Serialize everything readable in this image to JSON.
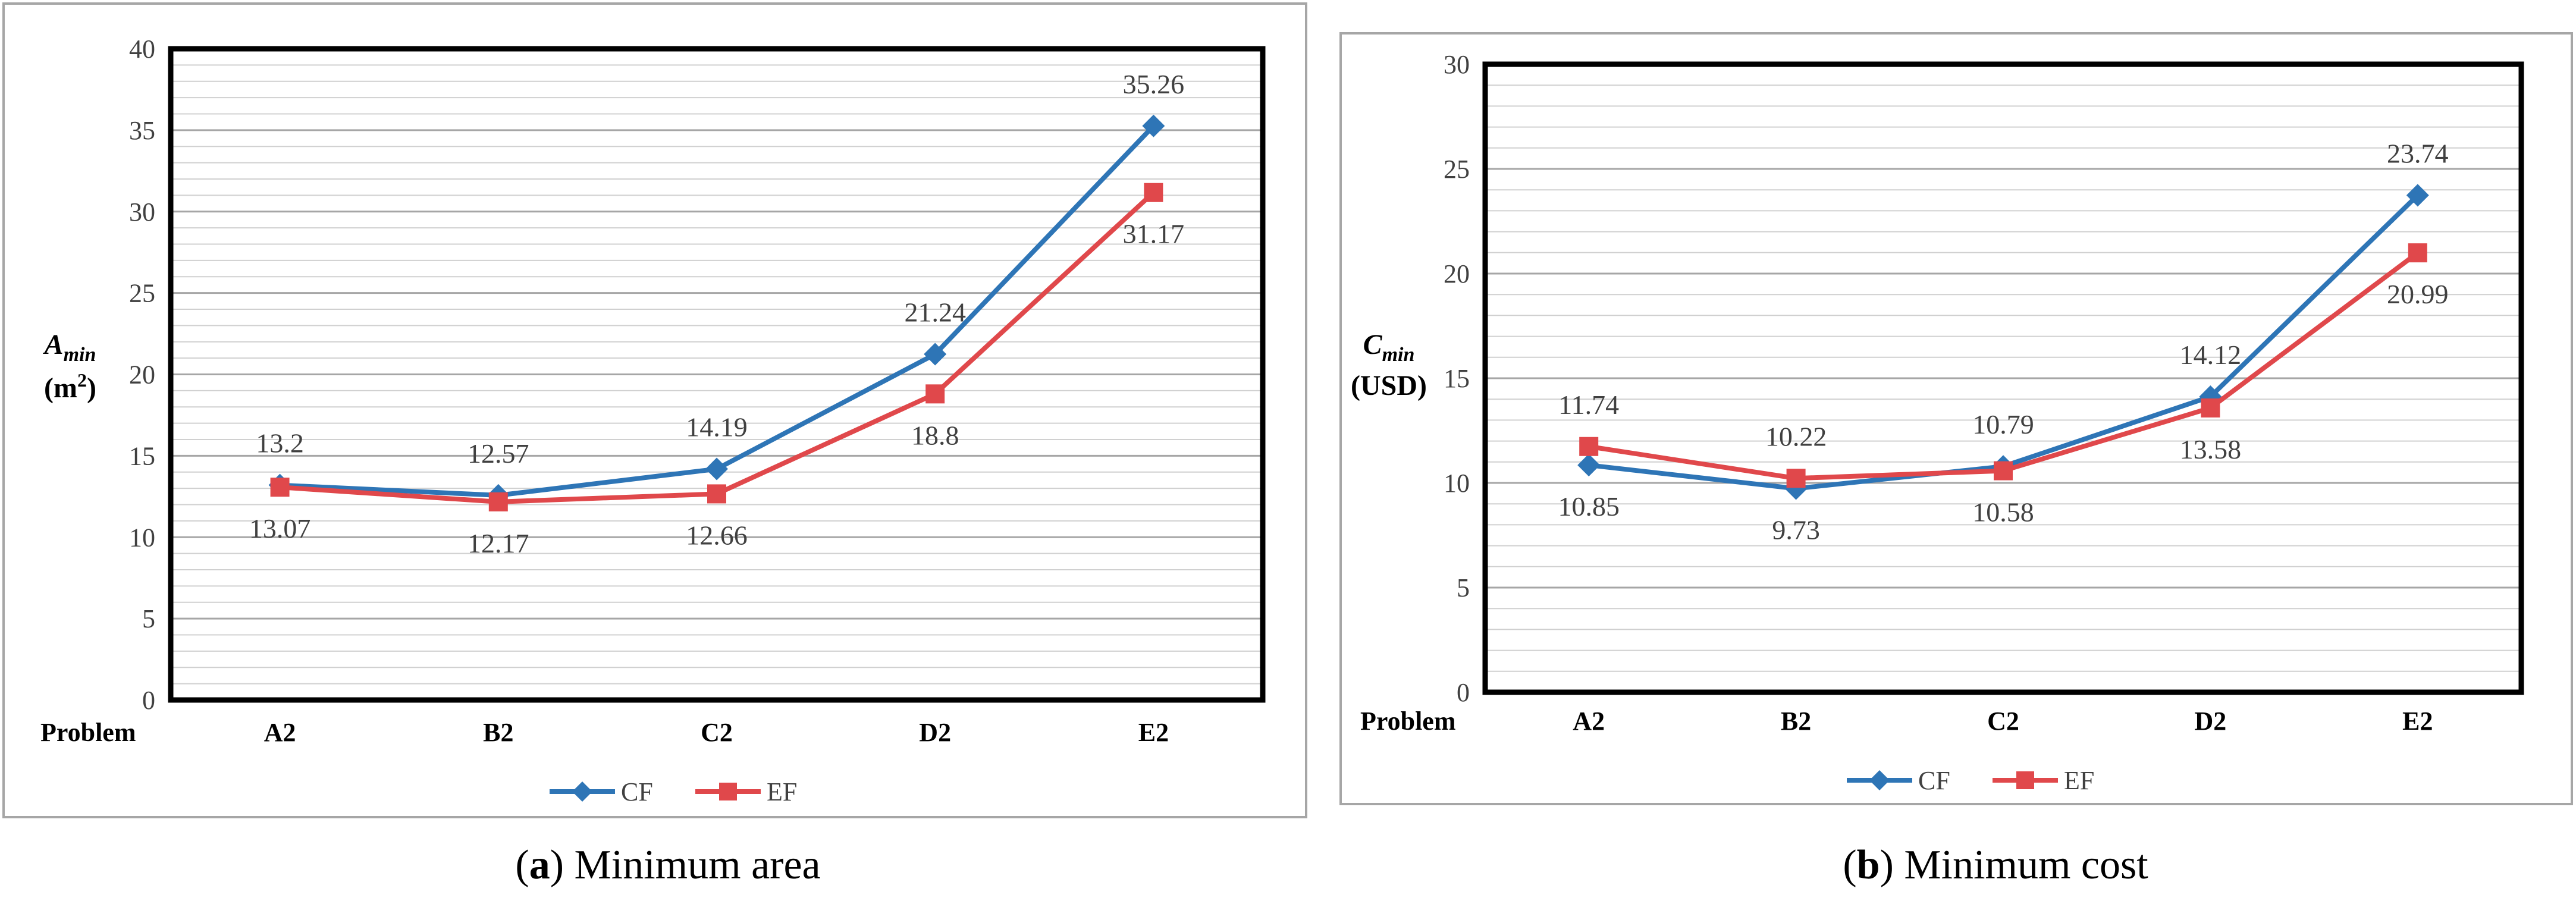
{
  "chart_data": [
    {
      "type": "line",
      "caption": {
        "open": "(",
        "letter": "a",
        "rest": ") Minimum area"
      },
      "ylabel": {
        "main": "A",
        "sub": "min",
        "unit": "(m",
        "unit_sup": "2",
        "unit_close": ")"
      },
      "xlabel": "Problem",
      "ylim": [
        0,
        40
      ],
      "ytick_step": 5,
      "minor_step": 1,
      "grid": true,
      "legend_placement": "bottom",
      "categories": [
        "A2",
        "B2",
        "C2",
        "D2",
        "E2"
      ],
      "series": [
        {
          "name": "CF",
          "color": "#2e75b6",
          "marker": "diamond",
          "values": [
            13.2,
            12.57,
            14.19,
            21.24,
            35.26
          ],
          "labels": [
            "13.2",
            "12.57",
            "14.19",
            "21.24",
            "35.26"
          ],
          "label_position": "above"
        },
        {
          "name": "EF",
          "color": "#e0484b",
          "marker": "square",
          "values": [
            13.07,
            12.17,
            12.66,
            18.8,
            31.17
          ],
          "labels": [
            "13.07",
            "12.17",
            "12.66",
            "18.8",
            "31.17"
          ],
          "label_position": "below"
        }
      ]
    },
    {
      "type": "line",
      "caption": {
        "open": "(",
        "letter": "b",
        "rest": ") Minimum cost"
      },
      "ylabel": {
        "main": "C",
        "sub": "min",
        "unit": "(USD)",
        "unit_sup": "",
        "unit_close": ""
      },
      "xlabel": "Problem",
      "ylim": [
        0,
        30
      ],
      "ytick_step": 5,
      "minor_step": 1,
      "grid": true,
      "legend_placement": "bottom",
      "categories": [
        "A2",
        "B2",
        "C2",
        "D2",
        "E2"
      ],
      "series": [
        {
          "name": "CF",
          "color": "#2e75b6",
          "marker": "diamond",
          "values": [
            10.85,
            9.73,
            10.79,
            14.12,
            23.74
          ],
          "labels": [
            "10.85",
            "9.73",
            "10.79",
            "14.12",
            "23.74"
          ],
          "label_position": [
            "below",
            "below",
            "above",
            "above",
            "above"
          ]
        },
        {
          "name": "EF",
          "color": "#e0484b",
          "marker": "square",
          "values": [
            11.74,
            10.22,
            10.58,
            13.58,
            20.99
          ],
          "labels": [
            "11.74",
            "10.22",
            "10.58",
            "13.58",
            "20.99"
          ],
          "label_position": [
            "above",
            "above",
            "below",
            "below",
            "below"
          ]
        }
      ]
    }
  ]
}
